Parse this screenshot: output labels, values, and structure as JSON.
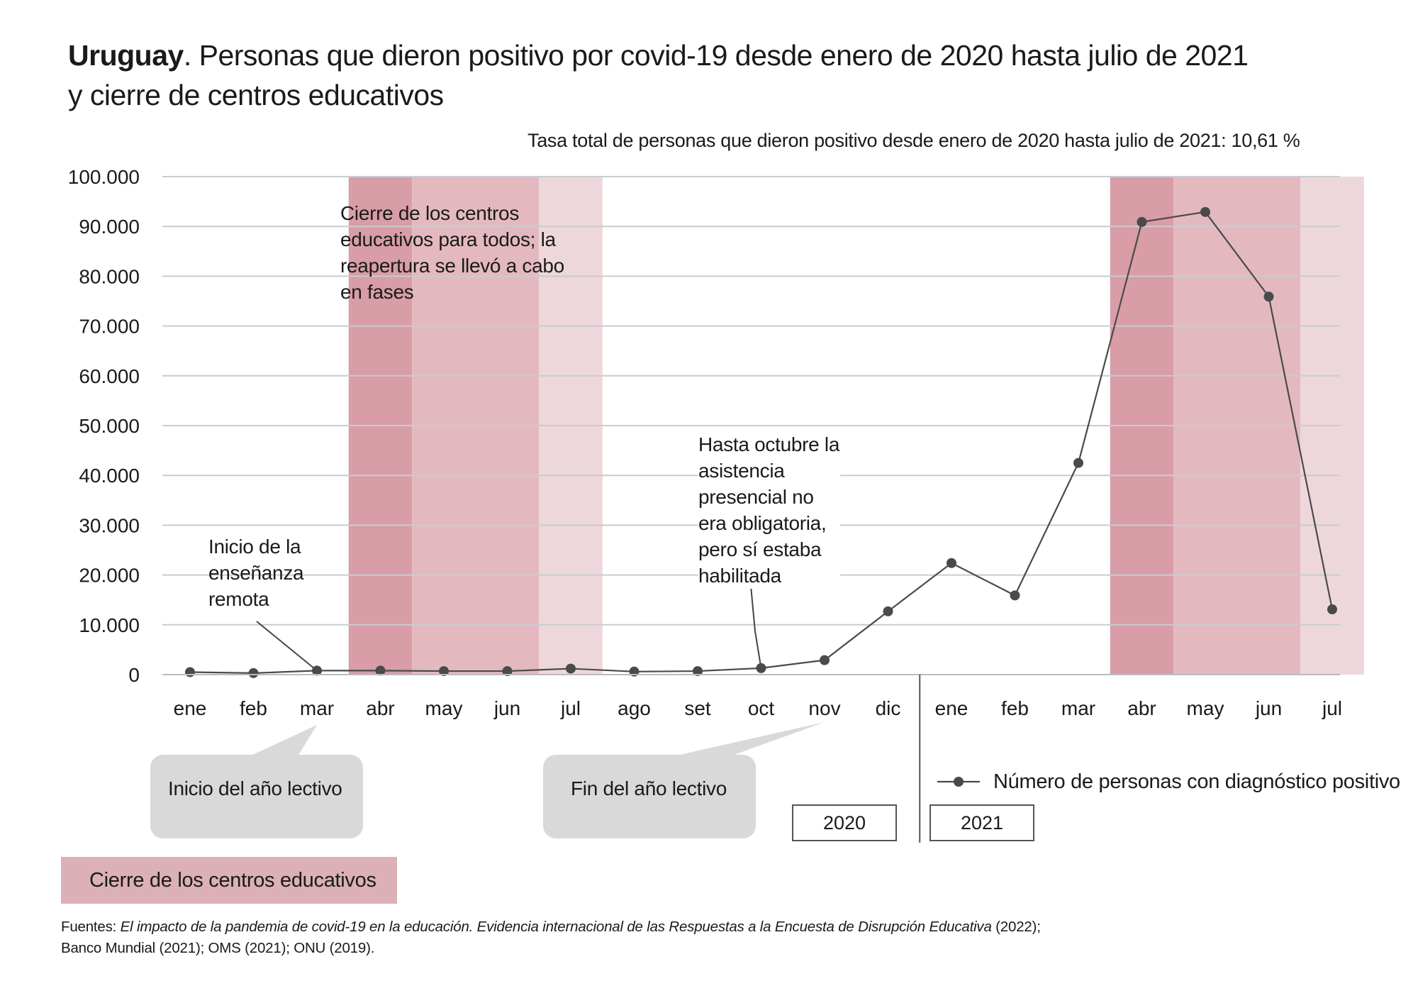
{
  "title": {
    "bold": "Uruguay",
    "rest": ". Personas que dieron positivo por covid-19 desde enero de 2020 hasta julio de 2021",
    "line2": "y cierre de centros educativos"
  },
  "subtitle": "Tasa total de personas que dieron positivo desde enero de 2020 hasta julio de 2021: 10,61 %",
  "chart_data": {
    "type": "line",
    "categories": [
      "ene",
      "feb",
      "mar",
      "abr",
      "may",
      "jun",
      "jul",
      "ago",
      "set",
      "oct",
      "nov",
      "dic",
      "ene",
      "feb",
      "mar",
      "abr",
      "may",
      "jun",
      "jul"
    ],
    "series": [
      {
        "name": "Número de personas con diagnóstico positivo",
        "values": [
          500,
          300,
          800,
          800,
          700,
          700,
          1200,
          600,
          700,
          1300,
          2900,
          12700,
          22400,
          15900,
          42500,
          90900,
          92900,
          75900,
          13100
        ]
      }
    ],
    "ylim": [
      0,
      100000
    ],
    "yticks": [
      0,
      10000,
      20000,
      30000,
      40000,
      50000,
      60000,
      70000,
      80000,
      90000,
      100000
    ],
    "ytick_labels": [
      "0",
      "10.000",
      "20.000",
      "30.000",
      "40.000",
      "50.000",
      "60.000",
      "70.000",
      "80.000",
      "90.000",
      "100.000"
    ],
    "grid": true,
    "years": [
      "2020",
      "2021"
    ],
    "closure_periods": [
      {
        "segments": [
          {
            "from": 2.5,
            "to": 3.5,
            "level": "full"
          },
          {
            "from": 3.5,
            "to": 5.5,
            "level": "partial"
          },
          {
            "from": 5.5,
            "to": 6.5,
            "level": "light"
          }
        ]
      },
      {
        "segments": [
          {
            "from": 14.5,
            "to": 15.5,
            "level": "full"
          },
          {
            "from": 15.5,
            "to": 17.5,
            "level": "partial"
          },
          {
            "from": 17.5,
            "to": 18.5,
            "level": "light"
          }
        ]
      }
    ],
    "colors": {
      "full": "#d89da6",
      "partial": "#e3b9bf",
      "light": "#eed7da",
      "line": "#4a4a4a",
      "grid": "#c8ccd2"
    },
    "annotations": {
      "closure": "Cierre de los centros educativos para todos; la reapertura se llevó a cabo en fases",
      "remote": "Inicio de la enseñanza remota",
      "october": "Hasta octubre la asistencia presencial no era obligatoria, pero sí estaba habilitada"
    }
  },
  "callouts": {
    "start": "Inicio del año lectivo",
    "end": "Fin del año lectivo"
  },
  "legend": {
    "line_label": "Número de personas con diagnóstico positivo",
    "closure_label": "Cierre de los centros educativos"
  },
  "footer": {
    "prefix": "Fuentes: ",
    "italic": "El impacto de la pandemia de covid-19 en la educación. Evidencia internacional de las Respuestas a la Encuesta de Disrupción Educativa",
    "after_italic": " (2022);",
    "line2": "Banco Mundial (2021); OMS (2021); ONU (2019)."
  }
}
